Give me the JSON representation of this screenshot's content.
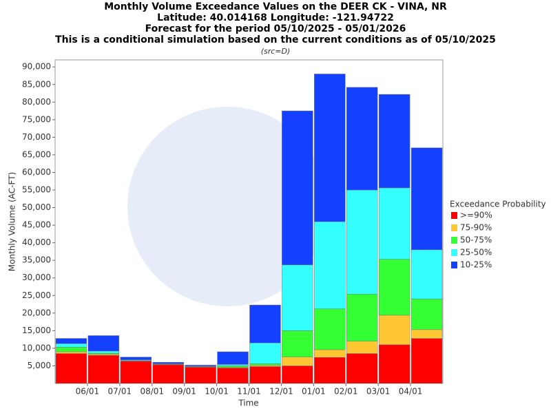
{
  "chart_data": {
    "type": "stacked_bar",
    "title": "Monthly Volume Exceedance Values on the DEER CK - VINA, NR",
    "subtitle_lines": [
      "Latitude: 40.014168 Longitude: -121.94722",
      "Forecast for the period 05/10/2025 - 05/01/2026",
      "This is a conditional simulation based on the current conditions as of 05/10/2025"
    ],
    "source": "(src=D)",
    "y_label": "Monthly Volume (AC-FT)",
    "x_label": "Time",
    "legend_title": "Exceedance Probability",
    "xticks": [
      "06/01",
      "07/01",
      "08/01",
      "09/01",
      "10/01",
      "11/01",
      "12/01",
      "01/01",
      "02/01",
      "03/01",
      "04/01"
    ],
    "series": [
      {
        "name": ">=90%",
        "color": "#ff0000",
        "values": [
          8500,
          8000,
          6300,
          5300,
          4600,
          4400,
          4800,
          5000,
          7400,
          8500,
          11000,
          12800
        ]
      },
      {
        "name": "75-90%",
        "color": "#ffc733",
        "values": [
          500,
          300,
          100,
          100,
          100,
          200,
          300,
          2500,
          2200,
          3500,
          8400,
          2500
        ]
      },
      {
        "name": "50-75%",
        "color": "#33ff33",
        "values": [
          1300,
          300,
          100,
          100,
          100,
          400,
          500,
          7500,
          11600,
          13400,
          15900,
          8700
        ]
      },
      {
        "name": "25-50%",
        "color": "#33ffff",
        "values": [
          1000,
          600,
          200,
          100,
          100,
          400,
          5900,
          18700,
          24800,
          29600,
          20300,
          14000
        ]
      },
      {
        "name": "10-25%",
        "color": "#1440ff",
        "values": [
          1500,
          4400,
          800,
          400,
          300,
          3600,
          10800,
          43800,
          42000,
          29200,
          26600,
          29000
        ]
      }
    ],
    "ylim": [
      0,
      92000
    ],
    "yticks": [
      {
        "value": 5000,
        "label": "5,000"
      },
      {
        "value": 10000,
        "label": "10,000"
      },
      {
        "value": 15000,
        "label": "15,000"
      },
      {
        "value": 20000,
        "label": "20,000"
      },
      {
        "value": 25000,
        "label": "25,000"
      },
      {
        "value": 30000,
        "label": "30,000"
      },
      {
        "value": 35000,
        "label": "35,000"
      },
      {
        "value": 40000,
        "label": "40,000"
      },
      {
        "value": 45000,
        "label": "45,000"
      },
      {
        "value": 50000,
        "label": "50,000"
      },
      {
        "value": 55000,
        "label": "55,000"
      },
      {
        "value": 60000,
        "label": "60,000"
      },
      {
        "value": 65000,
        "label": "65,000"
      },
      {
        "value": 70000,
        "label": "70,000"
      },
      {
        "value": 75000,
        "label": "75,000"
      },
      {
        "value": 80000,
        "label": "80,000"
      },
      {
        "value": 85000,
        "label": "85,000"
      },
      {
        "value": 90000,
        "label": "90,000"
      }
    ]
  }
}
